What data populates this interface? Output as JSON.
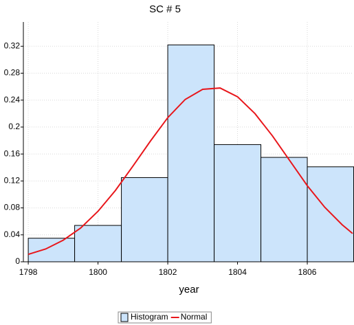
{
  "chart_data": {
    "type": "histogram",
    "title": "SC # 5",
    "x_label": "year",
    "bins": [
      1798,
      1799.33,
      1800.67,
      1802,
      1803.33,
      1804.67,
      1806,
      1807.33
    ],
    "series": [
      {
        "name": "Histogram",
        "type": "histogram",
        "color": "#cce4fb",
        "values": [
          0.035,
          0.054,
          0.125,
          0.322,
          0.174,
          0.155,
          0.141
        ]
      },
      {
        "name": "Normal",
        "type": "line",
        "color": "#e8161b",
        "x": [
          1798,
          1798.5,
          1799,
          1799.5,
          1800,
          1800.5,
          1801,
          1801.5,
          1802,
          1802.5,
          1803,
          1803.5,
          1804,
          1804.5,
          1805,
          1805.5,
          1806,
          1806.5,
          1807,
          1807.3
        ],
        "values": [
          0.011,
          0.019,
          0.032,
          0.05,
          0.075,
          0.106,
          0.142,
          0.179,
          0.214,
          0.241,
          0.256,
          0.258,
          0.245,
          0.22,
          0.187,
          0.15,
          0.113,
          0.081,
          0.055,
          0.042
        ]
      }
    ],
    "xlim": [
      1797.86,
      1807.3
    ],
    "ylim": [
      0,
      0.356
    ],
    "xticks": [
      1798,
      1800,
      1802,
      1804,
      1806
    ],
    "yticks": [
      0,
      0.04,
      0.08,
      0.12,
      0.16,
      0.2,
      0.24,
      0.28,
      0.32
    ],
    "grid": true,
    "legend": "bottom"
  }
}
